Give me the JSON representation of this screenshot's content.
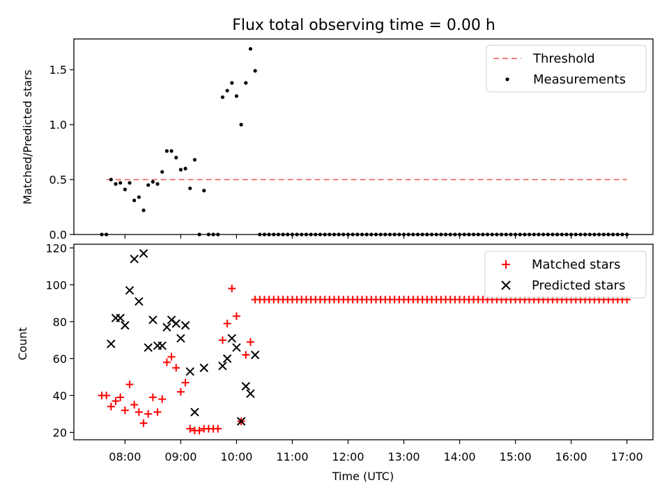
{
  "chart_data": [
    {
      "type": "scatter",
      "title": "Flux total observing time = 0.00 h",
      "xlabel": "",
      "ylabel": "Matched/Predicted stars",
      "ylim": [
        0,
        1.78
      ],
      "yticks": [
        "0.0",
        "0.5",
        "1.0",
        "1.5"
      ],
      "legend_placement": "top-right",
      "threshold": {
        "name": "Threshold",
        "value": 0.5,
        "x_start": "07:40",
        "x_end": "17:00",
        "color": "#f08080"
      },
      "series": [
        {
          "name": "Measurements",
          "marker": "dot",
          "color": "#000000",
          "points": [
            [
              "07:35",
              0.0
            ],
            [
              "07:40",
              0.0
            ],
            [
              "07:45",
              0.5
            ],
            [
              "07:50",
              0.46
            ],
            [
              "07:55",
              0.47
            ],
            [
              "08:00",
              0.41
            ],
            [
              "08:05",
              0.47
            ],
            [
              "08:10",
              0.31
            ],
            [
              "08:15",
              0.34
            ],
            [
              "08:20",
              0.22
            ],
            [
              "08:25",
              0.45
            ],
            [
              "08:30",
              0.48
            ],
            [
              "08:35",
              0.46
            ],
            [
              "08:40",
              0.57
            ],
            [
              "08:45",
              0.76
            ],
            [
              "08:50",
              0.76
            ],
            [
              "08:55",
              0.7
            ],
            [
              "09:00",
              0.59
            ],
            [
              "09:05",
              0.6
            ],
            [
              "09:10",
              0.42
            ],
            [
              "09:15",
              0.68
            ],
            [
              "09:20",
              0.0
            ],
            [
              "09:25",
              0.4
            ],
            [
              "09:30",
              0.0
            ],
            [
              "09:35",
              0.0
            ],
            [
              "09:40",
              0.0
            ],
            [
              "09:45",
              1.25
            ],
            [
              "09:50",
              1.31
            ],
            [
              "09:55",
              1.38
            ],
            [
              "10:00",
              1.26
            ],
            [
              "10:05",
              1.0
            ],
            [
              "10:10",
              1.38
            ],
            [
              "10:15",
              1.69
            ],
            [
              "10:20",
              1.49
            ],
            [
              "10:25",
              0.0
            ],
            [
              "10:30",
              0.0
            ],
            [
              "10:35",
              0.0
            ],
            [
              "10:40",
              0.0
            ],
            [
              "10:45",
              0.0
            ],
            [
              "10:50",
              0.0
            ],
            [
              "10:55",
              0.0
            ],
            [
              "11:00",
              0.0
            ],
            [
              "11:05",
              0.0
            ],
            [
              "11:10",
              0.0
            ],
            [
              "11:15",
              0.0
            ],
            [
              "11:20",
              0.0
            ],
            [
              "11:25",
              0.0
            ],
            [
              "11:30",
              0.0
            ],
            [
              "11:35",
              0.0
            ],
            [
              "11:40",
              0.0
            ],
            [
              "11:45",
              0.0
            ],
            [
              "11:50",
              0.0
            ],
            [
              "11:55",
              0.0
            ],
            [
              "12:00",
              0.0
            ],
            [
              "12:05",
              0.0
            ],
            [
              "12:10",
              0.0
            ],
            [
              "12:15",
              0.0
            ],
            [
              "12:20",
              0.0
            ],
            [
              "12:25",
              0.0
            ],
            [
              "12:30",
              0.0
            ],
            [
              "12:35",
              0.0
            ],
            [
              "12:40",
              0.0
            ],
            [
              "12:45",
              0.0
            ],
            [
              "12:50",
              0.0
            ],
            [
              "12:55",
              0.0
            ],
            [
              "13:00",
              0.0
            ],
            [
              "13:05",
              0.0
            ],
            [
              "13:10",
              0.0
            ],
            [
              "13:15",
              0.0
            ],
            [
              "13:20",
              0.0
            ],
            [
              "13:25",
              0.0
            ],
            [
              "13:30",
              0.0
            ],
            [
              "13:35",
              0.0
            ],
            [
              "13:40",
              0.0
            ],
            [
              "13:45",
              0.0
            ],
            [
              "13:50",
              0.0
            ],
            [
              "13:55",
              0.0
            ],
            [
              "14:00",
              0.0
            ],
            [
              "14:05",
              0.0
            ],
            [
              "14:10",
              0.0
            ],
            [
              "14:15",
              0.0
            ],
            [
              "14:20",
              0.0
            ],
            [
              "14:25",
              0.0
            ],
            [
              "14:30",
              0.0
            ],
            [
              "14:35",
              0.0
            ],
            [
              "14:40",
              0.0
            ],
            [
              "14:45",
              0.0
            ],
            [
              "14:50",
              0.0
            ],
            [
              "14:55",
              0.0
            ],
            [
              "15:00",
              0.0
            ],
            [
              "15:05",
              0.0
            ],
            [
              "15:10",
              0.0
            ],
            [
              "15:15",
              0.0
            ],
            [
              "15:20",
              0.0
            ],
            [
              "15:25",
              0.0
            ],
            [
              "15:30",
              0.0
            ],
            [
              "15:35",
              0.0
            ],
            [
              "15:40",
              0.0
            ],
            [
              "15:45",
              0.0
            ],
            [
              "15:50",
              0.0
            ],
            [
              "15:55",
              0.0
            ],
            [
              "16:00",
              0.0
            ],
            [
              "16:05",
              0.0
            ],
            [
              "16:10",
              0.0
            ],
            [
              "16:15",
              0.0
            ],
            [
              "16:20",
              0.0
            ],
            [
              "16:25",
              0.0
            ],
            [
              "16:30",
              0.0
            ],
            [
              "16:35",
              0.0
            ],
            [
              "16:40",
              0.0
            ],
            [
              "16:45",
              0.0
            ],
            [
              "16:50",
              0.0
            ],
            [
              "16:55",
              0.0
            ],
            [
              "17:00",
              0.0
            ]
          ]
        }
      ]
    },
    {
      "type": "scatter",
      "title": "",
      "xlabel": "Time (UTC)",
      "ylabel": "Count",
      "ylim": [
        16,
        122
      ],
      "yticks": [
        "20",
        "40",
        "60",
        "80",
        "100",
        "120"
      ],
      "xticks": [
        "08:00",
        "09:00",
        "10:00",
        "11:00",
        "12:00",
        "13:00",
        "14:00",
        "15:00",
        "16:00",
        "17:00"
      ],
      "xlim": [
        "07:05",
        "17:28"
      ],
      "legend_placement": "top-right",
      "series": [
        {
          "name": "Matched stars",
          "marker": "plus",
          "color": "#ff0000",
          "points": [
            [
              "07:35",
              40
            ],
            [
              "07:40",
              40
            ],
            [
              "07:45",
              34
            ],
            [
              "07:50",
              37
            ],
            [
              "07:55",
              39
            ],
            [
              "08:00",
              32
            ],
            [
              "08:05",
              46
            ],
            [
              "08:10",
              35
            ],
            [
              "08:15",
              31
            ],
            [
              "08:20",
              25
            ],
            [
              "08:25",
              30
            ],
            [
              "08:30",
              39
            ],
            [
              "08:35",
              31
            ],
            [
              "08:40",
              38
            ],
            [
              "08:45",
              58
            ],
            [
              "08:50",
              61
            ],
            [
              "08:55",
              55
            ],
            [
              "09:00",
              42
            ],
            [
              "09:05",
              47
            ],
            [
              "09:10",
              22
            ],
            [
              "09:15",
              21
            ],
            [
              "09:20",
              21
            ],
            [
              "09:25",
              22
            ],
            [
              "09:30",
              22
            ],
            [
              "09:35",
              22
            ],
            [
              "09:40",
              22
            ],
            [
              "09:45",
              70
            ],
            [
              "09:50",
              79
            ],
            [
              "09:55",
              98
            ],
            [
              "10:00",
              83
            ],
            [
              "10:05",
              26
            ],
            [
              "10:10",
              62
            ],
            [
              "10:15",
              69
            ],
            [
              "10:20",
              92
            ],
            [
              "10:25",
              92
            ],
            [
              "10:30",
              92
            ],
            [
              "10:35",
              92
            ],
            [
              "10:40",
              92
            ],
            [
              "10:45",
              92
            ],
            [
              "10:50",
              92
            ],
            [
              "10:55",
              92
            ],
            [
              "11:00",
              92
            ],
            [
              "11:05",
              92
            ],
            [
              "11:10",
              92
            ],
            [
              "11:15",
              92
            ],
            [
              "11:20",
              92
            ],
            [
              "11:25",
              92
            ],
            [
              "11:30",
              92
            ],
            [
              "11:35",
              92
            ],
            [
              "11:40",
              92
            ],
            [
              "11:45",
              92
            ],
            [
              "11:50",
              92
            ],
            [
              "11:55",
              92
            ],
            [
              "12:00",
              92
            ],
            [
              "12:05",
              92
            ],
            [
              "12:10",
              92
            ],
            [
              "12:15",
              92
            ],
            [
              "12:20",
              92
            ],
            [
              "12:25",
              92
            ],
            [
              "12:30",
              92
            ],
            [
              "12:35",
              92
            ],
            [
              "12:40",
              92
            ],
            [
              "12:45",
              92
            ],
            [
              "12:50",
              92
            ],
            [
              "12:55",
              92
            ],
            [
              "13:00",
              92
            ],
            [
              "13:05",
              92
            ],
            [
              "13:10",
              92
            ],
            [
              "13:15",
              92
            ],
            [
              "13:20",
              92
            ],
            [
              "13:25",
              92
            ],
            [
              "13:30",
              92
            ],
            [
              "13:35",
              92
            ],
            [
              "13:40",
              92
            ],
            [
              "13:45",
              92
            ],
            [
              "13:50",
              92
            ],
            [
              "13:55",
              92
            ],
            [
              "14:00",
              92
            ],
            [
              "14:05",
              92
            ],
            [
              "14:10",
              92
            ],
            [
              "14:15",
              92
            ],
            [
              "14:20",
              92
            ],
            [
              "14:25",
              92
            ],
            [
              "14:30",
              92
            ],
            [
              "14:35",
              92
            ],
            [
              "14:40",
              92
            ],
            [
              "14:45",
              92
            ],
            [
              "14:50",
              92
            ],
            [
              "14:55",
              92
            ],
            [
              "15:00",
              92
            ],
            [
              "15:05",
              92
            ],
            [
              "15:10",
              92
            ],
            [
              "15:15",
              92
            ],
            [
              "15:20",
              92
            ],
            [
              "15:25",
              92
            ],
            [
              "15:30",
              92
            ],
            [
              "15:35",
              92
            ],
            [
              "15:40",
              92
            ],
            [
              "15:45",
              92
            ],
            [
              "15:50",
              92
            ],
            [
              "15:55",
              92
            ],
            [
              "16:00",
              92
            ],
            [
              "16:05",
              92
            ],
            [
              "16:10",
              92
            ],
            [
              "16:15",
              92
            ],
            [
              "16:20",
              92
            ],
            [
              "16:25",
              92
            ],
            [
              "16:30",
              92
            ],
            [
              "16:35",
              92
            ],
            [
              "16:40",
              92
            ],
            [
              "16:45",
              92
            ],
            [
              "16:50",
              92
            ],
            [
              "16:55",
              92
            ],
            [
              "17:00",
              92
            ]
          ]
        },
        {
          "name": "Predicted stars",
          "marker": "x",
          "color": "#000000",
          "points": [
            [
              "07:45",
              68
            ],
            [
              "07:50",
              82
            ],
            [
              "07:55",
              82
            ],
            [
              "08:00",
              78
            ],
            [
              "08:05",
              97
            ],
            [
              "08:10",
              114
            ],
            [
              "08:15",
              91
            ],
            [
              "08:20",
              117
            ],
            [
              "08:25",
              66
            ],
            [
              "08:30",
              81
            ],
            [
              "08:35",
              67
            ],
            [
              "08:40",
              67
            ],
            [
              "08:45",
              77
            ],
            [
              "08:50",
              81
            ],
            [
              "08:55",
              79
            ],
            [
              "09:00",
              71
            ],
            [
              "09:05",
              78
            ],
            [
              "09:10",
              53
            ],
            [
              "09:15",
              31
            ],
            [
              "09:25",
              55
            ],
            [
              "09:45",
              56
            ],
            [
              "09:50",
              60
            ],
            [
              "09:55",
              71
            ],
            [
              "10:00",
              66
            ],
            [
              "10:05",
              26
            ],
            [
              "10:10",
              45
            ],
            [
              "10:15",
              41
            ],
            [
              "10:20",
              62
            ]
          ]
        }
      ]
    }
  ]
}
